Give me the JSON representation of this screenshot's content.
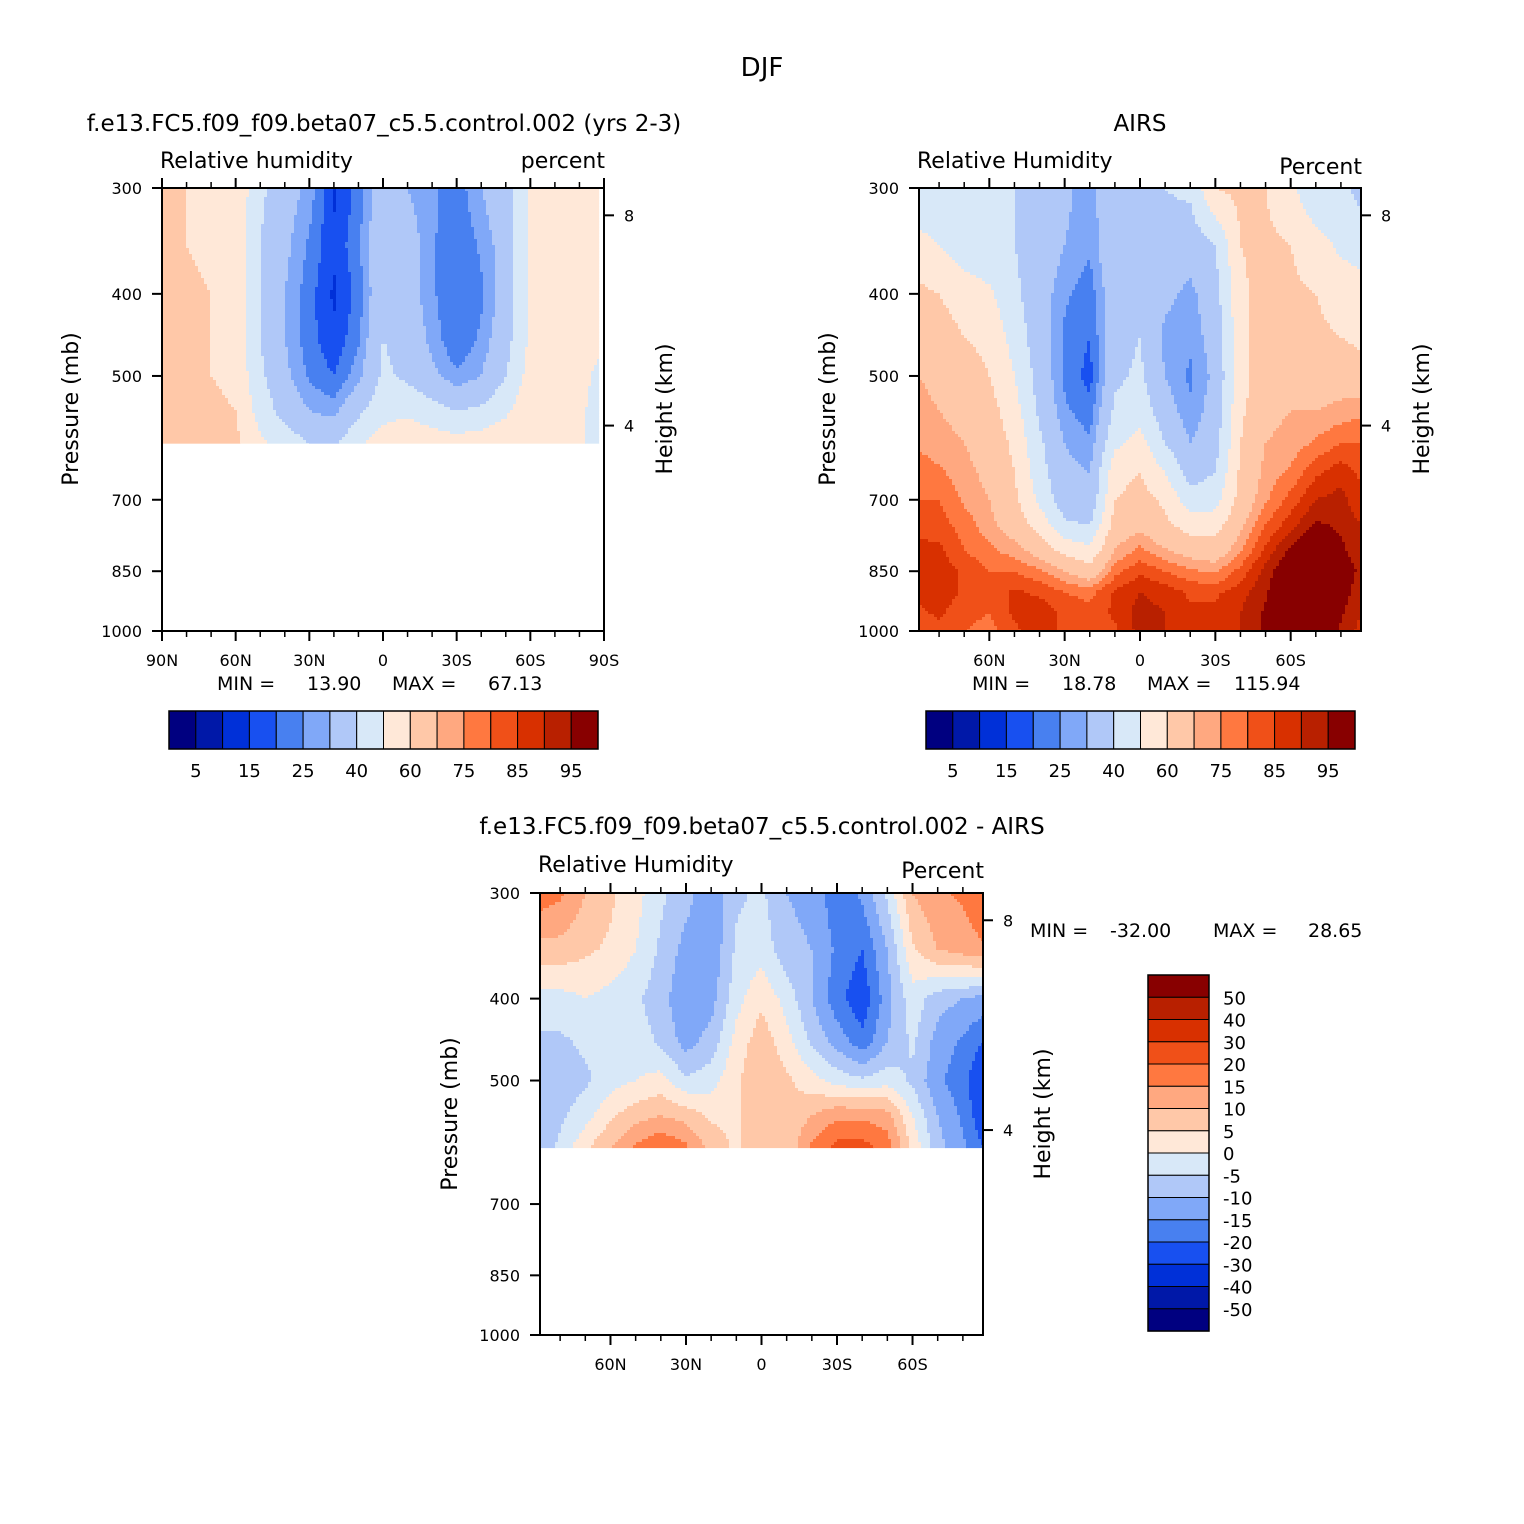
{
  "figure": {
    "title": "DJF",
    "colors": {
      "levels": [
        "#000080",
        "#0018a8",
        "#0030d8",
        "#1850f0",
        "#4880f0",
        "#80a8f8",
        "#b0c8f8",
        "#d8e8f8",
        "#ffe8d8",
        "#ffc8a8",
        "#ffa880",
        "#ff7840",
        "#f05018",
        "#d83000",
        "#b82000",
        "#880000"
      ]
    }
  },
  "chart_data": [
    {
      "id": "model",
      "type": "heatmap",
      "title": "f.e13.FC5.f09_f09.beta07_c5.5.control.002 (yrs 2-3)",
      "left_label": "Relative humidity",
      "right_label": "percent",
      "ylabel": "Pressure (mb)",
      "y2label": "Height (km)",
      "y_ticks": [
        "300",
        "400",
        "500",
        "700",
        "850",
        "1000"
      ],
      "y_tick_values": [
        300,
        400,
        500,
        700,
        850,
        1000
      ],
      "y2_ticks": [
        "8",
        "4"
      ],
      "x_ticks": [
        "90N",
        "60N",
        "30N",
        "0",
        "30S",
        "60S",
        "90S"
      ],
      "x_tick_values": [
        90,
        60,
        30,
        0,
        -30,
        -60,
        -90
      ],
      "xlim": [
        90,
        -90
      ],
      "ylim": [
        300,
        1000
      ],
      "data_bottom_pressure": 600,
      "min_label": "MIN =",
      "min_value": "13.90",
      "max_label": "MAX =",
      "max_value": "67.13",
      "colorbar_labels": [
        "5",
        "15",
        "25",
        "40",
        "60",
        "75",
        "85",
        "95"
      ],
      "x": [
        90,
        80,
        70,
        60,
        50,
        40,
        30,
        20,
        10,
        0,
        -10,
        -20,
        -30,
        -40,
        -50,
        -60,
        -70,
        -80,
        -88
      ],
      "p": [
        300,
        350,
        400,
        450,
        500,
        550,
        600
      ],
      "values": [
        [
          62,
          60,
          60,
          58,
          42,
          34,
          28,
          14,
          22,
          36,
          30,
          26,
          22,
          30,
          36,
          52,
          58,
          56,
          52
        ],
        [
          62,
          60,
          58,
          56,
          40,
          32,
          24,
          16,
          24,
          38,
          34,
          26,
          20,
          26,
          34,
          52,
          58,
          56,
          52
        ],
        [
          64,
          62,
          60,
          56,
          40,
          30,
          22,
          14,
          22,
          38,
          34,
          26,
          20,
          24,
          34,
          52,
          60,
          58,
          54
        ],
        [
          64,
          62,
          60,
          56,
          40,
          30,
          22,
          16,
          24,
          40,
          36,
          28,
          20,
          26,
          36,
          52,
          60,
          58,
          54
        ],
        [
          64,
          62,
          60,
          58,
          42,
          32,
          24,
          20,
          28,
          42,
          38,
          32,
          26,
          30,
          40,
          54,
          60,
          56,
          46
        ],
        [
          66,
          64,
          62,
          60,
          46,
          36,
          30,
          28,
          38,
          46,
          48,
          44,
          40,
          42,
          48,
          58,
          60,
          54,
          42
        ],
        [
          66,
          66,
          64,
          62,
          52,
          46,
          40,
          38,
          48,
          56,
          58,
          56,
          54,
          56,
          58,
          60,
          60,
          54,
          42
        ]
      ]
    },
    {
      "id": "obs",
      "type": "heatmap",
      "title": "AIRS",
      "left_label": "Relative Humidity",
      "right_label": "Percent",
      "ylabel": "Pressure (mb)",
      "y2label": "Height (km)",
      "y_ticks": [
        "300",
        "400",
        "500",
        "700",
        "850",
        "1000"
      ],
      "y_tick_values": [
        300,
        400,
        500,
        700,
        850,
        1000
      ],
      "y2_ticks": [
        "8",
        "4"
      ],
      "x_ticks": [
        "60N",
        "30N",
        "0",
        "30S",
        "60S"
      ],
      "x_tick_values": [
        60,
        30,
        0,
        -30,
        -60
      ],
      "xlim": [
        88,
        -88
      ],
      "ylim": [
        300,
        1000
      ],
      "data_bottom_pressure": 1000,
      "min_label": "MIN =",
      "min_value": "18.78",
      "max_label": "MAX =",
      "max_value": "115.94",
      "colorbar_labels": [
        "5",
        "15",
        "25",
        "40",
        "60",
        "75",
        "85",
        "95"
      ],
      "x": [
        88,
        80,
        70,
        60,
        50,
        40,
        30,
        20,
        10,
        0,
        -10,
        -20,
        -30,
        -40,
        -50,
        -60,
        -70,
        -80,
        -88
      ],
      "p": [
        300,
        350,
        400,
        450,
        500,
        550,
        600,
        650,
        700,
        750,
        800,
        850,
        900,
        950,
        1000
      ],
      "values": [
        [
          40,
          40,
          40,
          40,
          40,
          38,
          32,
          26,
          40,
          40,
          40,
          42,
          60,
          62,
          60,
          52,
          42,
          44,
          36
        ],
        [
          54,
          50,
          44,
          42,
          40,
          36,
          30,
          26,
          38,
          40,
          36,
          34,
          40,
          60,
          62,
          60,
          54,
          48,
          46
        ],
        [
          62,
          60,
          56,
          52,
          42,
          34,
          26,
          22,
          36,
          40,
          32,
          28,
          36,
          58,
          64,
          62,
          60,
          56,
          54
        ],
        [
          66,
          64,
          60,
          58,
          46,
          34,
          24,
          20,
          36,
          40,
          28,
          26,
          34,
          56,
          66,
          64,
          62,
          60,
          58
        ],
        [
          70,
          68,
          64,
          60,
          50,
          36,
          24,
          18,
          38,
          42,
          30,
          24,
          32,
          56,
          66,
          66,
          66,
          66,
          64
        ],
        [
          72,
          70,
          68,
          64,
          54,
          38,
          26,
          22,
          42,
          46,
          34,
          26,
          34,
          58,
          68,
          70,
          70,
          72,
          74
        ],
        [
          74,
          72,
          70,
          66,
          58,
          42,
          30,
          26,
          48,
          54,
          40,
          30,
          36,
          60,
          70,
          72,
          76,
          80,
          80
        ],
        [
          78,
          76,
          72,
          68,
          60,
          44,
          32,
          30,
          56,
          60,
          50,
          36,
          40,
          62,
          72,
          76,
          84,
          88,
          84
        ],
        [
          80,
          80,
          74,
          70,
          62,
          48,
          34,
          32,
          60,
          64,
          58,
          44,
          46,
          64,
          74,
          82,
          90,
          92,
          86
        ],
        [
          84,
          82,
          78,
          72,
          66,
          56,
          42,
          40,
          64,
          68,
          62,
          56,
          56,
          68,
          80,
          88,
          96,
          94,
          90
        ],
        [
          86,
          86,
          80,
          76,
          72,
          66,
          56,
          52,
          70,
          76,
          70,
          66,
          64,
          74,
          86,
          96,
          102,
          96,
          92
        ],
        [
          88,
          88,
          84,
          80,
          80,
          76,
          70,
          64,
          78,
          84,
          80,
          76,
          74,
          82,
          92,
          102,
          108,
          98,
          94
        ],
        [
          86,
          88,
          84,
          82,
          86,
          84,
          80,
          78,
          86,
          90,
          88,
          84,
          84,
          88,
          94,
          106,
          110,
          98,
          92
        ],
        [
          84,
          86,
          82,
          80,
          86,
          88,
          84,
          82,
          86,
          92,
          90,
          86,
          86,
          90,
          96,
          108,
          112,
          96,
          90
        ],
        [
          82,
          84,
          80,
          78,
          84,
          88,
          84,
          82,
          84,
          92,
          90,
          86,
          86,
          90,
          96,
          108,
          112,
          94,
          88
        ]
      ]
    },
    {
      "id": "diff",
      "type": "heatmap",
      "title": "f.e13.FC5.f09_f09.beta07_c5.5.control.002 - AIRS",
      "left_label": "Relative Humidity",
      "right_label": "Percent",
      "ylabel": "Pressure (mb)",
      "y2label": "Height (km)",
      "y_ticks": [
        "300",
        "400",
        "500",
        "700",
        "850",
        "1000"
      ],
      "y_tick_values": [
        300,
        400,
        500,
        700,
        850,
        1000
      ],
      "y2_ticks": [
        "8",
        "4"
      ],
      "x_ticks": [
        "60N",
        "30N",
        "0",
        "30S",
        "60S"
      ],
      "x_tick_values": [
        60,
        30,
        0,
        -30,
        -60
      ],
      "xlim": [
        88,
        -88
      ],
      "ylim": [
        300,
        1000
      ],
      "data_bottom_pressure": 600,
      "min_label": "MIN =",
      "min_value": "-32.00",
      "max_label": "MAX =",
      "max_value": "28.65",
      "colorbar_labels": [
        "50",
        "40",
        "30",
        "20",
        "15",
        "10",
        "5",
        "0",
        "-5",
        "-10",
        "-15",
        "-20",
        "-30",
        "-40",
        "-50"
      ],
      "colorbar_bounds": [
        -50,
        -40,
        -30,
        -20,
        -15,
        -10,
        -5,
        0,
        5,
        10,
        15,
        20,
        30,
        40,
        50
      ],
      "x": [
        88,
        80,
        70,
        60,
        50,
        40,
        30,
        20,
        10,
        0,
        -10,
        -20,
        -30,
        -40,
        -50,
        -60,
        -70,
        -80,
        -88
      ],
      "p": [
        300,
        350,
        400,
        450,
        500,
        550,
        600
      ],
      "values": [
        [
          18,
          16,
          10,
          6,
          2,
          -4,
          -8,
          -14,
          -6,
          -4,
          -10,
          -12,
          -18,
          -14,
          -4,
          10,
          14,
          16,
          20
        ],
        [
          8,
          8,
          6,
          4,
          0,
          -6,
          -12,
          -14,
          -4,
          -2,
          -8,
          -10,
          -16,
          -20,
          -10,
          4,
          10,
          12,
          14
        ],
        [
          -2,
          -2,
          0,
          -2,
          -4,
          -8,
          -14,
          -12,
          -2,
          4,
          -2,
          -10,
          -18,
          -24,
          -12,
          -2,
          -8,
          -10,
          -12
        ],
        [
          -6,
          -6,
          -4,
          -4,
          -2,
          -6,
          -12,
          -8,
          2,
          8,
          2,
          -6,
          -12,
          -18,
          -10,
          -4,
          -12,
          -16,
          -20
        ],
        [
          -10,
          -8,
          -6,
          -2,
          0,
          2,
          -4,
          -2,
          4,
          10,
          6,
          2,
          -2,
          -4,
          -2,
          -6,
          -14,
          -18,
          -26
        ],
        [
          -10,
          -6,
          -2,
          4,
          8,
          10,
          8,
          4,
          4,
          10,
          6,
          10,
          14,
          14,
          12,
          0,
          -10,
          -16,
          -24
        ],
        [
          -8,
          -4,
          4,
          10,
          16,
          20,
          16,
          8,
          4,
          8,
          6,
          16,
          22,
          22,
          18,
          4,
          -8,
          -14,
          -20
        ]
      ]
    }
  ]
}
